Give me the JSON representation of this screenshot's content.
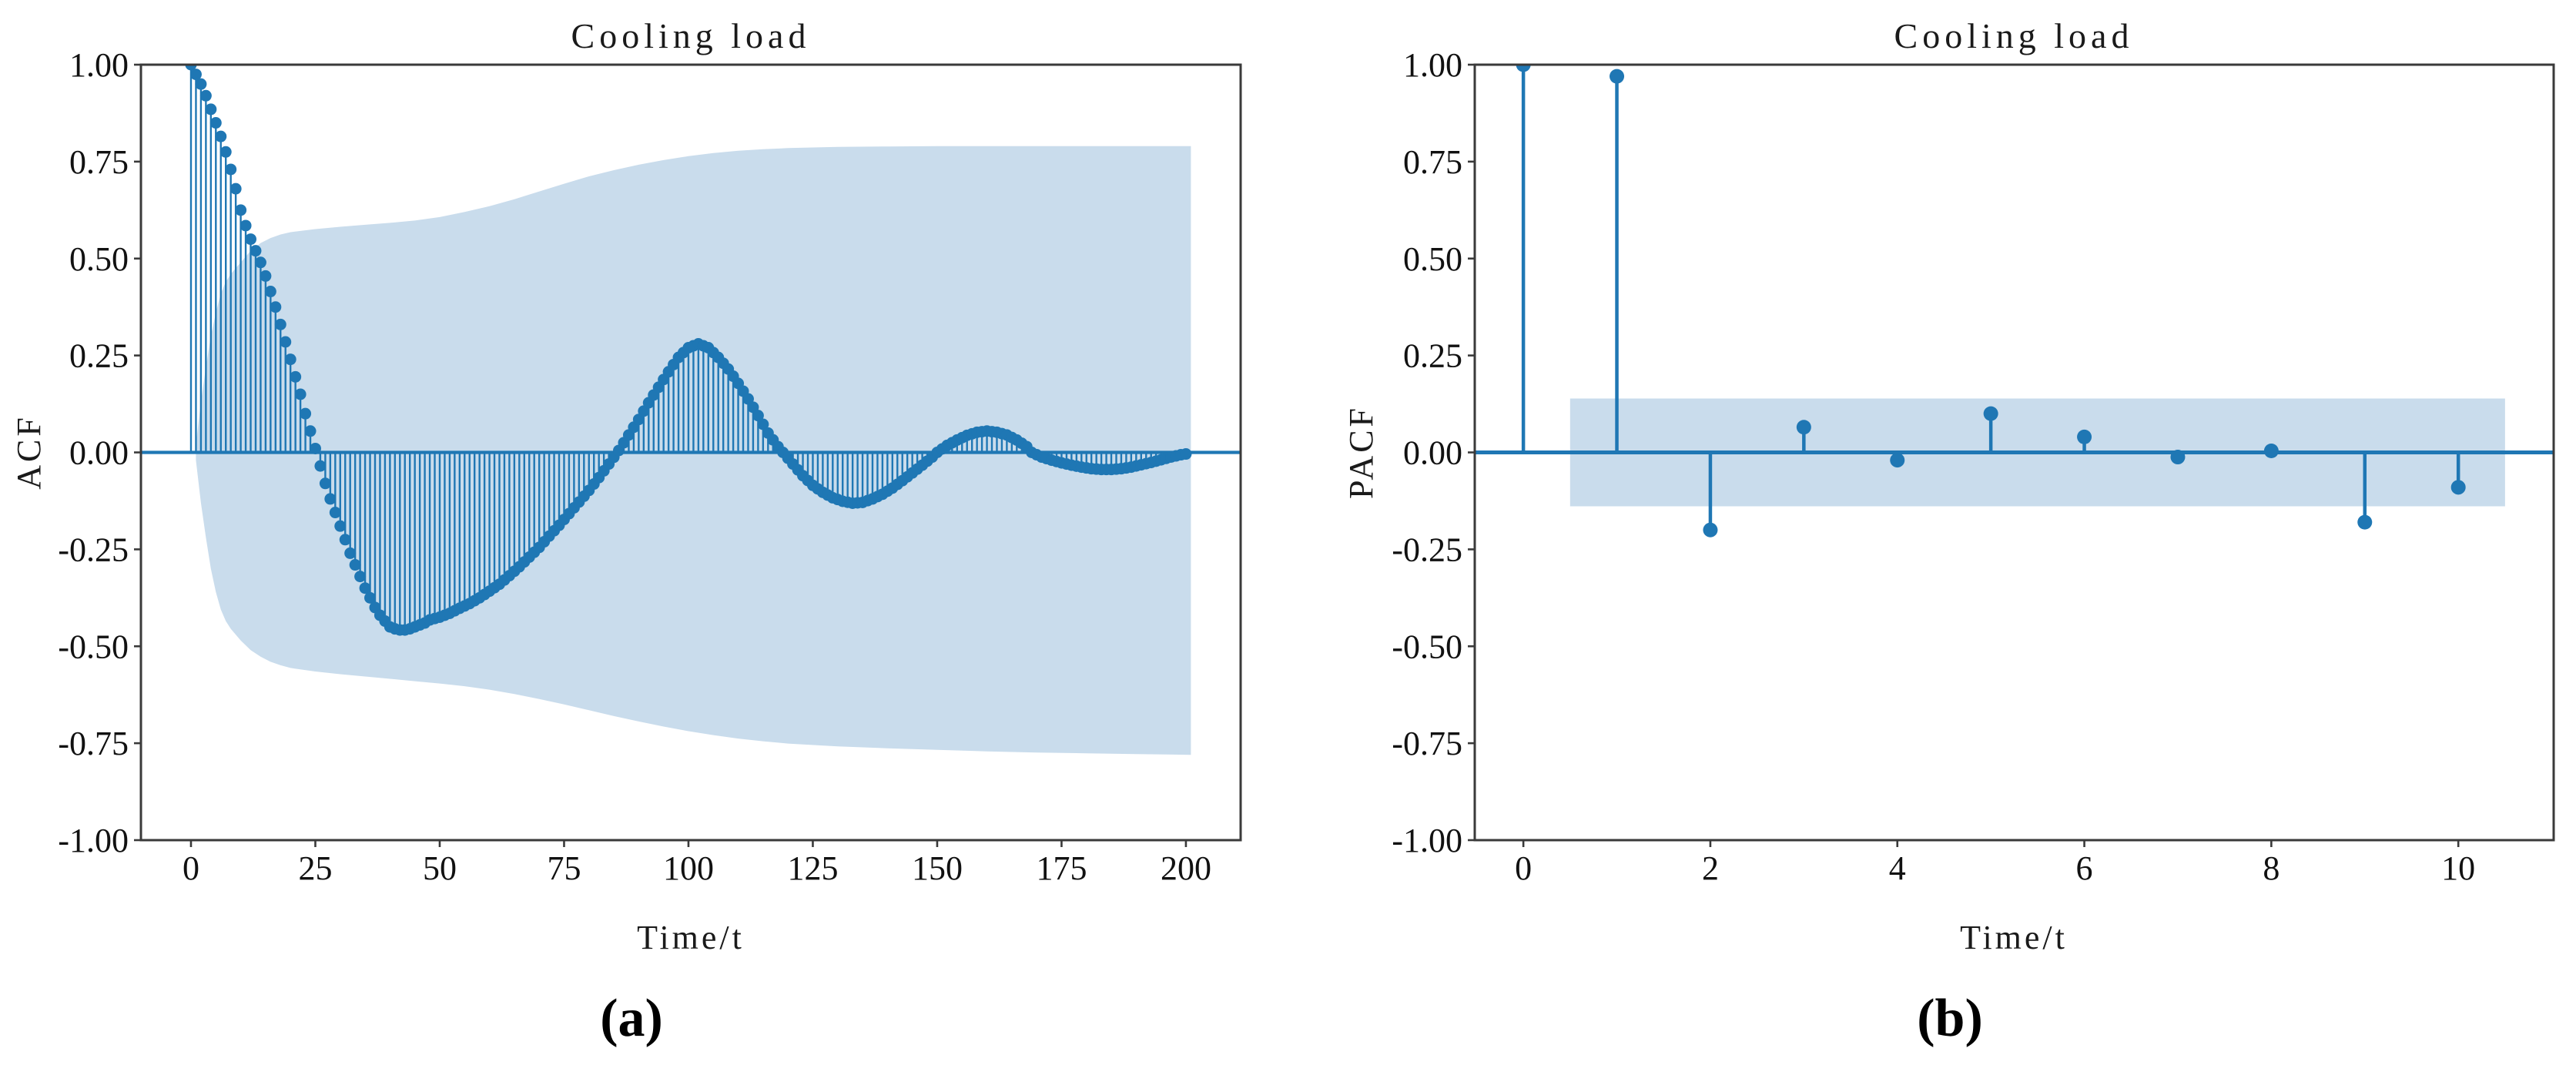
{
  "figure": {
    "description": "Two-panel correlogram figure: (a) autocorrelation (ACF) and (b) partial autocorrelation (PACF) of cooling load series",
    "panel_captions": [
      "(a)",
      "(b)"
    ]
  },
  "chart_data": [
    {
      "type": "stem",
      "panel": "a",
      "title": "Cooling load",
      "xlabel": "Time/t",
      "ylabel": "ACF",
      "caption": "(a)",
      "legend": "none",
      "grid": false,
      "xlim": [
        -10.06,
        211.0
      ],
      "ylim": [
        -1.0,
        1.0
      ],
      "x_ticks": {
        "values": [
          0,
          25,
          50,
          75,
          100,
          125,
          150,
          175,
          200
        ],
        "labels": [
          "0",
          "25",
          "50",
          "75",
          "100",
          "125",
          "150",
          "175",
          "200"
        ]
      },
      "y_ticks": {
        "values": [
          1.0,
          0.75,
          0.5,
          0.25,
          0.0,
          -0.25,
          -0.5,
          -0.75,
          -1.0
        ],
        "labels": [
          "1.00",
          "0.75",
          "0.50",
          "0.25",
          "0.00",
          "-0.25",
          "-0.50",
          "-0.75",
          "-1.00"
        ]
      },
      "series": {
        "name": "ACF",
        "lag_min": 0,
        "lag_max": 200,
        "lag_step": 1,
        "note": "stems drawn at every integer lag; values linearly interpolated between control points read from the plot",
        "control_points": [
          [
            0,
            1.0
          ],
          [
            1,
            0.975
          ],
          [
            2,
            0.95
          ],
          [
            3,
            0.92
          ],
          [
            4,
            0.885
          ],
          [
            5,
            0.85
          ],
          [
            6,
            0.815
          ],
          [
            7,
            0.775
          ],
          [
            8,
            0.73
          ],
          [
            9,
            0.68
          ],
          [
            10,
            0.625
          ],
          [
            11,
            0.585
          ],
          [
            12,
            0.55
          ],
          [
            13,
            0.52
          ],
          [
            14,
            0.49
          ],
          [
            15,
            0.455
          ],
          [
            16,
            0.415
          ],
          [
            17,
            0.375
          ],
          [
            18,
            0.33
          ],
          [
            19,
            0.285
          ],
          [
            20,
            0.24
          ],
          [
            21,
            0.195
          ],
          [
            22,
            0.15
          ],
          [
            23,
            0.1
          ],
          [
            24,
            0.055
          ],
          [
            25,
            0.01
          ],
          [
            26,
            -0.035
          ],
          [
            27,
            -0.08
          ],
          [
            28,
            -0.12
          ],
          [
            29,
            -0.155
          ],
          [
            30,
            -0.19
          ],
          [
            31,
            -0.225
          ],
          [
            32,
            -0.26
          ],
          [
            33,
            -0.29
          ],
          [
            34,
            -0.32
          ],
          [
            35,
            -0.35
          ],
          [
            36,
            -0.375
          ],
          [
            37,
            -0.4
          ],
          [
            38,
            -0.42
          ],
          [
            39,
            -0.435
          ],
          [
            40,
            -0.45
          ],
          [
            41,
            -0.455
          ],
          [
            42,
            -0.458
          ],
          [
            43,
            -0.458
          ],
          [
            44,
            -0.455
          ],
          [
            45,
            -0.45
          ],
          [
            46,
            -0.445
          ],
          [
            47,
            -0.44
          ],
          [
            48,
            -0.432
          ],
          [
            50,
            -0.425
          ],
          [
            52,
            -0.415
          ],
          [
            54,
            -0.402
          ],
          [
            56,
            -0.39
          ],
          [
            58,
            -0.375
          ],
          [
            60,
            -0.358
          ],
          [
            62,
            -0.34
          ],
          [
            64,
            -0.318
          ],
          [
            66,
            -0.295
          ],
          [
            68,
            -0.27
          ],
          [
            70,
            -0.245
          ],
          [
            72,
            -0.216
          ],
          [
            74,
            -0.188
          ],
          [
            76,
            -0.158
          ],
          [
            78,
            -0.128
          ],
          [
            80,
            -0.098
          ],
          [
            82,
            -0.065
          ],
          [
            84,
            -0.03
          ],
          [
            86,
            0.005
          ],
          [
            88,
            0.045
          ],
          [
            90,
            0.085
          ],
          [
            92,
            0.128
          ],
          [
            94,
            0.168
          ],
          [
            96,
            0.208
          ],
          [
            98,
            0.245
          ],
          [
            100,
            0.27
          ],
          [
            102,
            0.28
          ],
          [
            104,
            0.27
          ],
          [
            106,
            0.245
          ],
          [
            108,
            0.215
          ],
          [
            110,
            0.178
          ],
          [
            112,
            0.138
          ],
          [
            114,
            0.095
          ],
          [
            116,
            0.05
          ],
          [
            118,
            0.015
          ],
          [
            119,
            0.0
          ],
          [
            121,
            -0.03
          ],
          [
            123,
            -0.06
          ],
          [
            125,
            -0.085
          ],
          [
            127,
            -0.103
          ],
          [
            129,
            -0.117
          ],
          [
            131,
            -0.126
          ],
          [
            133,
            -0.131
          ],
          [
            135,
            -0.129
          ],
          [
            137,
            -0.12
          ],
          [
            139,
            -0.108
          ],
          [
            141,
            -0.092
          ],
          [
            143,
            -0.073
          ],
          [
            145,
            -0.053
          ],
          [
            147,
            -0.033
          ],
          [
            149,
            -0.012
          ],
          [
            150,
            0.0
          ],
          [
            152,
            0.018
          ],
          [
            154,
            0.032
          ],
          [
            156,
            0.044
          ],
          [
            158,
            0.052
          ],
          [
            160,
            0.055
          ],
          [
            162,
            0.052
          ],
          [
            164,
            0.045
          ],
          [
            166,
            0.032
          ],
          [
            168,
            0.015
          ],
          [
            169,
            0.0
          ],
          [
            171,
            -0.012
          ],
          [
            173,
            -0.02
          ],
          [
            175,
            -0.027
          ],
          [
            177,
            -0.033
          ],
          [
            179,
            -0.038
          ],
          [
            181,
            -0.042
          ],
          [
            183,
            -0.044
          ],
          [
            185,
            -0.044
          ],
          [
            187,
            -0.042
          ],
          [
            189,
            -0.038
          ],
          [
            191,
            -0.032
          ],
          [
            193,
            -0.026
          ],
          [
            195,
            -0.019
          ],
          [
            197,
            -0.012
          ],
          [
            199,
            -0.006
          ],
          [
            200,
            -0.004
          ]
        ]
      },
      "conf_band": {
        "shape": "polygon",
        "note": "approximate 95% confidence band [lag, lower, upper] read from shaded region",
        "points": [
          [
            1,
            -0.02,
            0.02
          ],
          [
            2,
            -0.13,
            0.13
          ],
          [
            3,
            -0.22,
            0.22
          ],
          [
            4,
            -0.3,
            0.3
          ],
          [
            5,
            -0.36,
            0.36
          ],
          [
            6,
            -0.405,
            0.41
          ],
          [
            7,
            -0.435,
            0.44
          ],
          [
            8,
            -0.455,
            0.46
          ],
          [
            9,
            -0.47,
            0.475
          ],
          [
            10,
            -0.485,
            0.49
          ],
          [
            12,
            -0.51,
            0.52
          ],
          [
            14,
            -0.527,
            0.54
          ],
          [
            16,
            -0.54,
            0.553
          ],
          [
            18,
            -0.549,
            0.562
          ],
          [
            20,
            -0.556,
            0.568
          ],
          [
            25,
            -0.565,
            0.576
          ],
          [
            30,
            -0.572,
            0.582
          ],
          [
            35,
            -0.578,
            0.587
          ],
          [
            40,
            -0.584,
            0.592
          ],
          [
            45,
            -0.59,
            0.598
          ],
          [
            50,
            -0.596,
            0.607
          ],
          [
            55,
            -0.603,
            0.62
          ],
          [
            60,
            -0.612,
            0.635
          ],
          [
            65,
            -0.623,
            0.653
          ],
          [
            70,
            -0.636,
            0.673
          ],
          [
            75,
            -0.65,
            0.693
          ],
          [
            80,
            -0.665,
            0.712
          ],
          [
            85,
            -0.68,
            0.728
          ],
          [
            90,
            -0.694,
            0.742
          ],
          [
            95,
            -0.707,
            0.754
          ],
          [
            100,
            -0.719,
            0.764
          ],
          [
            105,
            -0.729,
            0.772
          ],
          [
            110,
            -0.738,
            0.778
          ],
          [
            115,
            -0.745,
            0.782
          ],
          [
            120,
            -0.751,
            0.785
          ],
          [
            130,
            -0.758,
            0.788
          ],
          [
            140,
            -0.763,
            0.789
          ],
          [
            150,
            -0.767,
            0.79
          ],
          [
            160,
            -0.771,
            0.79
          ],
          [
            170,
            -0.774,
            0.79
          ],
          [
            180,
            -0.776,
            0.79
          ],
          [
            190,
            -0.778,
            0.79
          ],
          [
            201,
            -0.78,
            0.79
          ]
        ]
      },
      "colors": {
        "stem": "#1f77b4",
        "band": "#c9dcec",
        "spine": "#3a3a3a",
        "text": "#111111"
      }
    },
    {
      "type": "stem",
      "panel": "b",
      "title": "Cooling load",
      "xlabel": "Time/t",
      "ylabel": "PACF",
      "caption": "(b)",
      "legend": "none",
      "grid": false,
      "xlim": [
        -0.52,
        11.02
      ],
      "ylim": [
        -1.0,
        1.0
      ],
      "x_ticks": {
        "values": [
          0,
          2,
          4,
          6,
          8,
          10
        ],
        "labels": [
          "0",
          "2",
          "4",
          "6",
          "8",
          "10"
        ]
      },
      "y_ticks": {
        "values": [
          1.0,
          0.75,
          0.5,
          0.25,
          0.0,
          -0.25,
          -0.5,
          -0.75,
          -1.0
        ],
        "labels": [
          "1.00",
          "0.75",
          "0.50",
          "0.25",
          "0.00",
          "-0.25",
          "-0.50",
          "-0.75",
          "-1.00"
        ]
      },
      "series": {
        "name": "PACF",
        "lags": [
          0,
          1,
          2,
          3,
          4,
          5,
          6,
          7,
          8,
          9,
          10
        ],
        "values": [
          1.0,
          0.97,
          -0.2,
          0.065,
          -0.02,
          0.1,
          0.04,
          -0.012,
          0.004,
          -0.18,
          -0.09
        ]
      },
      "conf_band": {
        "shape": "rect",
        "x": [
          0.5,
          10.5
        ],
        "lo": -0.139,
        "hi": 0.139
      },
      "colors": {
        "stem": "#1f77b4",
        "band": "#c9dcec",
        "spine": "#3a3a3a",
        "text": "#111111"
      }
    }
  ]
}
